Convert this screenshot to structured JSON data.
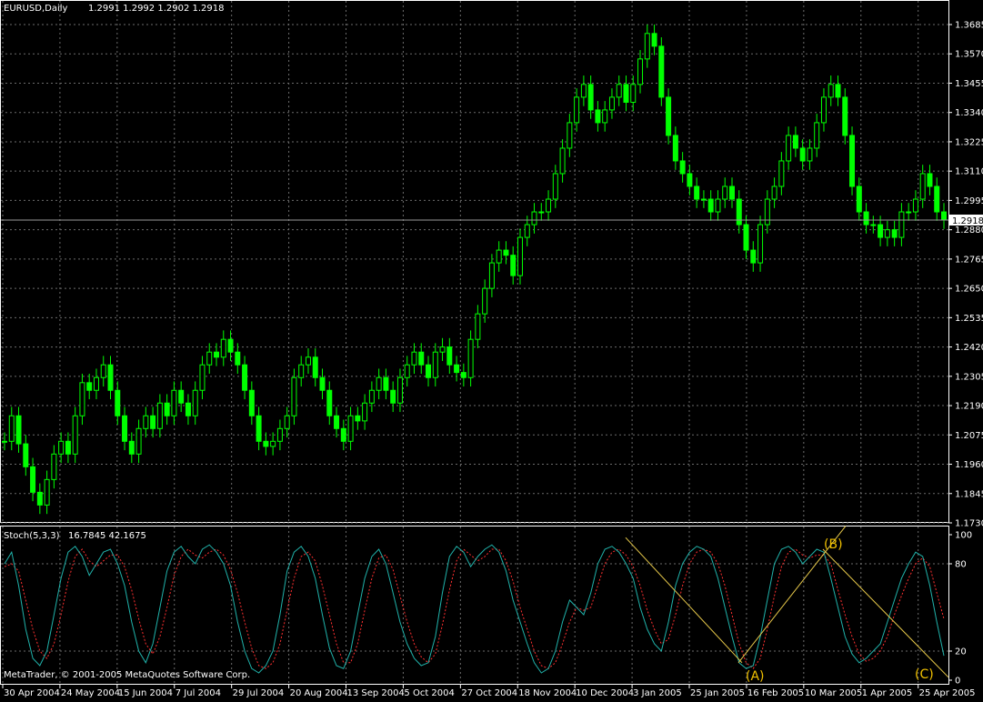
{
  "colors": {
    "background": "#000000",
    "candle": "#00ff00",
    "grid": "#6b6b6b",
    "text": "#ffffff",
    "stoch_main": "#20b2aa",
    "stoch_signal": "#ff3030",
    "wave_lines": "#e6c84a",
    "wave_labels": "#f0c000"
  },
  "header": {
    "symbol": "EURUSD,Daily",
    "ohlc": "1.2991 1.2992 1.2902 1.2918"
  },
  "indicator_header": {
    "name": "Stoch(5,3,3)",
    "values": "16.7845 42.1675"
  },
  "copyright": "MetaTrader, © 2001-2005 MetaQuotes Software Corp.",
  "chart_data": [
    {
      "type": "line",
      "title": "EURUSD,Daily",
      "ylim": [
        1.173,
        1.3685
      ],
      "y_ticks": [
        "1.3685",
        "1.3570",
        "1.3455",
        "1.3340",
        "1.3225",
        "1.3110",
        "1.2995",
        "1.2880",
        "1.2765",
        "1.2650",
        "1.2535",
        "1.2420",
        "1.2305",
        "1.2190",
        "1.2075",
        "1.1960",
        "1.1845",
        "1.1730"
      ],
      "x_ticks": [
        "30 Apr 2004",
        "24 May 2004",
        "15 Jun 2004",
        "7 Jul 2004",
        "29 Jul 2004",
        "20 Aug 2004",
        "13 Sep 2004",
        "5 Oct 2004",
        "27 Oct 2004",
        "18 Nov 2004",
        "10 Dec 2004",
        "3 Jan 2005",
        "25 Jan 2005",
        "16 Feb 2005",
        "10 Mar 2005",
        "1 Apr 2005",
        "25 Apr 2005"
      ],
      "current_price": "1.2918",
      "series": [
        {
          "values": [
            1.205,
            1.215,
            1.204,
            1.195,
            1.185,
            1.18,
            1.19,
            1.2,
            1.205,
            1.2,
            1.215,
            1.228,
            1.225,
            1.23,
            1.235,
            1.225,
            1.215,
            1.205,
            1.2,
            1.21,
            1.215,
            1.21,
            1.22,
            1.215,
            1.225,
            1.22,
            1.215,
            1.225,
            1.235,
            1.24,
            1.238,
            1.245,
            1.24,
            1.235,
            1.225,
            1.215,
            1.205,
            1.203,
            1.205,
            1.21,
            1.215,
            1.23,
            1.235,
            1.238,
            1.23,
            1.225,
            1.215,
            1.21,
            1.205,
            1.215,
            1.213,
            1.22,
            1.225,
            1.23,
            1.225,
            1.22,
            1.23,
            1.235,
            1.24,
            1.235,
            1.23,
            1.24,
            1.242,
            1.235,
            1.232,
            1.23,
            1.245,
            1.255,
            1.265,
            1.275,
            1.28,
            1.278,
            1.27,
            1.285,
            1.29,
            1.295,
            1.295,
            1.3,
            1.31,
            1.32,
            1.33,
            1.34,
            1.345,
            1.335,
            1.33,
            1.335,
            1.34,
            1.345,
            1.338,
            1.345,
            1.355,
            1.365,
            1.36,
            1.34,
            1.325,
            1.315,
            1.31,
            1.305,
            1.3,
            1.3,
            1.295,
            1.3,
            1.305,
            1.3,
            1.29,
            1.28,
            1.275,
            1.29,
            1.3,
            1.305,
            1.315,
            1.325,
            1.32,
            1.315,
            1.32,
            1.33,
            1.34,
            1.345,
            1.34,
            1.325,
            1.305,
            1.295,
            1.29,
            1.29,
            1.285,
            1.288,
            1.285,
            1.295,
            1.295,
            1.3,
            1.31,
            1.305,
            1.295,
            1.2918
          ]
        }
      ]
    },
    {
      "type": "line",
      "title": "Stoch(5,3,3)",
      "ylim": [
        0,
        100
      ],
      "y_ticks": [
        "100",
        "80",
        "20",
        "0"
      ],
      "series": [
        {
          "values": [
            80,
            88,
            65,
            35,
            15,
            10,
            20,
            45,
            70,
            88,
            92,
            85,
            72,
            80,
            88,
            90,
            80,
            65,
            40,
            20,
            12,
            25,
            50,
            75,
            88,
            92,
            85,
            80,
            90,
            93,
            88,
            80,
            65,
            40,
            20,
            8,
            5,
            10,
            20,
            45,
            75,
            88,
            92,
            85,
            70,
            45,
            22,
            10,
            8,
            20,
            45,
            70,
            85,
            90,
            80,
            60,
            40,
            25,
            15,
            10,
            12,
            30,
            60,
            85,
            92,
            88,
            78,
            85,
            90,
            93,
            88,
            75,
            55,
            40,
            25,
            12,
            5,
            8,
            20,
            40,
            55,
            50,
            45,
            60,
            80,
            90,
            92,
            88,
            80,
            70,
            50,
            35,
            25,
            20,
            40,
            65,
            80,
            88,
            92,
            90,
            85,
            70,
            50,
            30,
            12,
            8,
            10,
            30,
            55,
            80,
            90,
            92,
            88,
            80,
            85,
            90,
            88,
            70,
            50,
            30,
            18,
            12,
            15,
            20,
            25,
            40,
            55,
            70,
            80,
            88,
            85,
            65,
            40,
            16.8
          ]
        },
        {
          "values": [
            78,
            80,
            75,
            55,
            35,
            20,
            15,
            25,
            45,
            68,
            85,
            90,
            82,
            78,
            82,
            86,
            86,
            78,
            62,
            42,
            25,
            18,
            30,
            50,
            72,
            85,
            90,
            86,
            84,
            88,
            90,
            86,
            76,
            60,
            40,
            22,
            10,
            8,
            12,
            25,
            48,
            70,
            85,
            88,
            82,
            65,
            45,
            25,
            12,
            12,
            25,
            48,
            70,
            84,
            86,
            76,
            58,
            40,
            25,
            16,
            12,
            18,
            38,
            62,
            82,
            90,
            86,
            82,
            85,
            90,
            90,
            82,
            68,
            50,
            35,
            20,
            10,
            8,
            12,
            25,
            40,
            50,
            48,
            50,
            65,
            80,
            88,
            90,
            86,
            78,
            65,
            48,
            35,
            25,
            28,
            45,
            65,
            80,
            88,
            90,
            88,
            80,
            65,
            45,
            25,
            12,
            8,
            15,
            35,
            58,
            78,
            88,
            90,
            86,
            84,
            86,
            86,
            80,
            62,
            45,
            30,
            18,
            13,
            15,
            20,
            30,
            45,
            58,
            70,
            80,
            84,
            78,
            60,
            42.2
          ]
        }
      ],
      "annotations": [
        "(A)",
        "(B)",
        "(C)"
      ]
    }
  ]
}
